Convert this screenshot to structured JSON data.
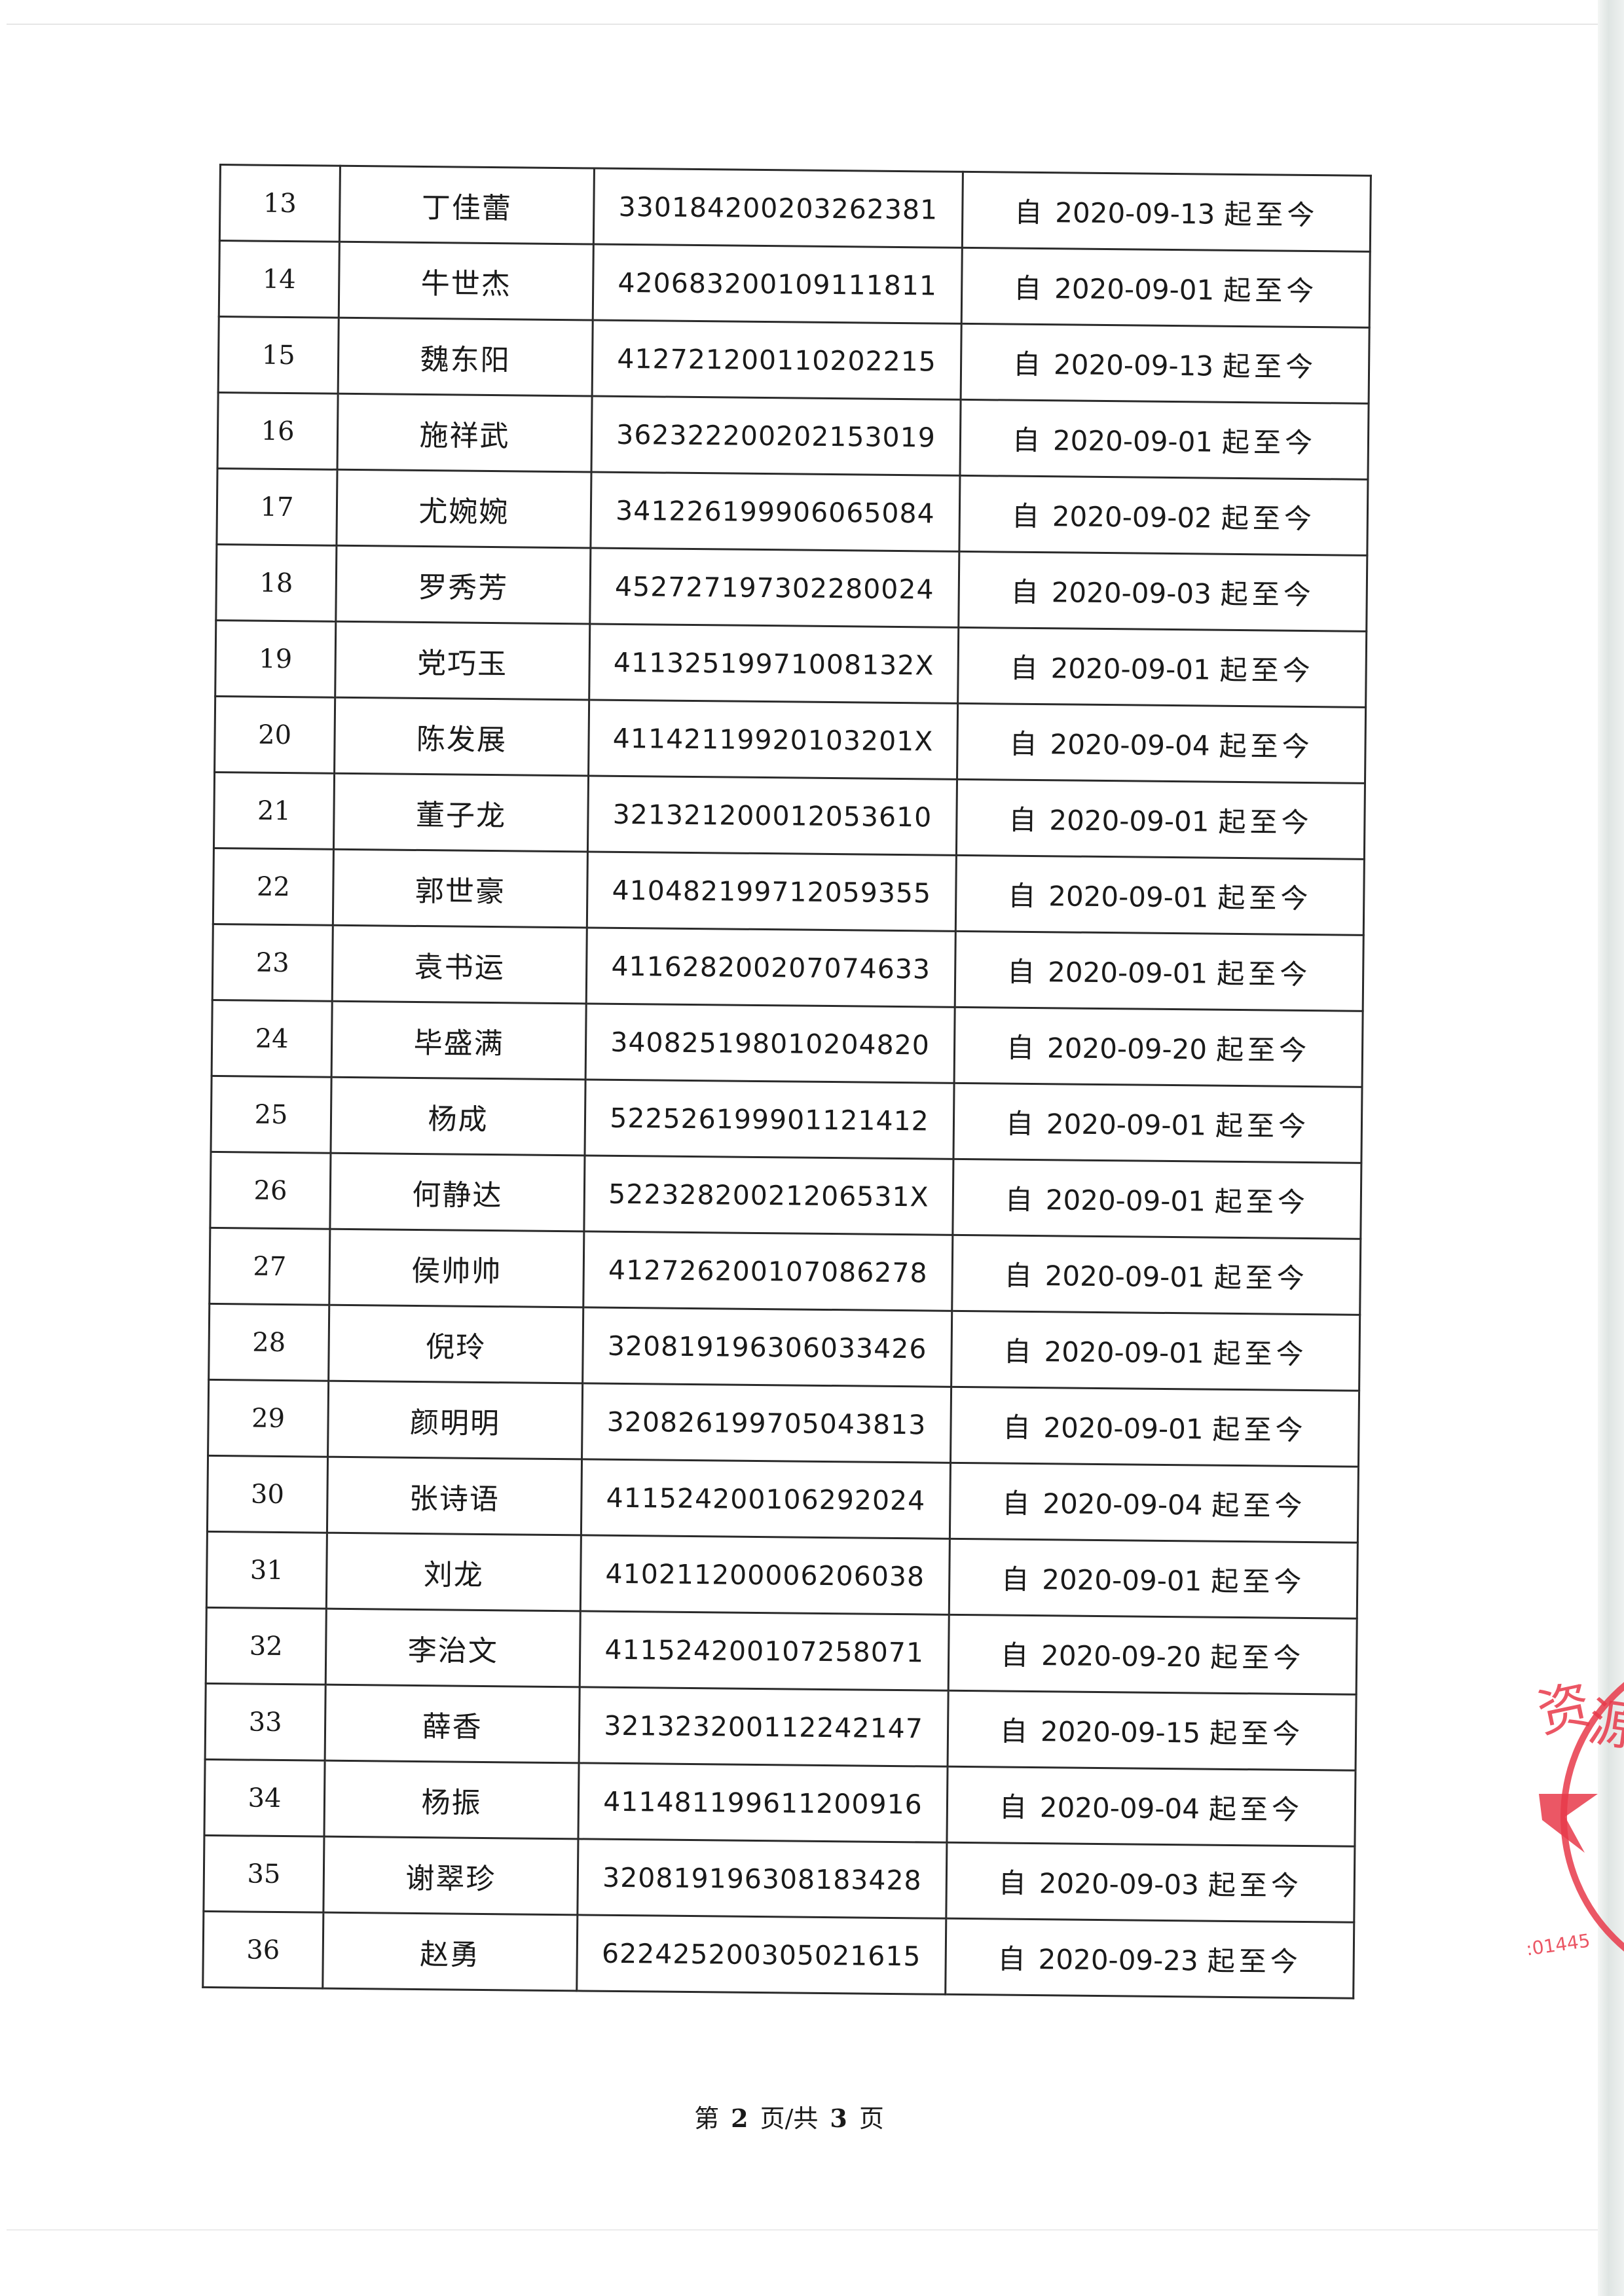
{
  "rows": [
    {
      "no": "13",
      "name": "丁佳蕾",
      "id": "330184200203262381",
      "date": "2020-09-13"
    },
    {
      "no": "14",
      "name": "牛世杰",
      "id": "420683200109111811",
      "date": "2020-09-01"
    },
    {
      "no": "15",
      "name": "魏东阳",
      "id": "412721200110202215",
      "date": "2020-09-13"
    },
    {
      "no": "16",
      "name": "施祥武",
      "id": "362322200202153019",
      "date": "2020-09-01"
    },
    {
      "no": "17",
      "name": "尤婉婉",
      "id": "341226199906065084",
      "date": "2020-09-02"
    },
    {
      "no": "18",
      "name": "罗秀芳",
      "id": "452727197302280024",
      "date": "2020-09-03"
    },
    {
      "no": "19",
      "name": "党巧玉",
      "id": "41132519971008132X",
      "date": "2020-09-01"
    },
    {
      "no": "20",
      "name": "陈发展",
      "id": "41142119920103201X",
      "date": "2020-09-04"
    },
    {
      "no": "21",
      "name": "董子龙",
      "id": "321321200012053610",
      "date": "2020-09-01"
    },
    {
      "no": "22",
      "name": "郭世豪",
      "id": "410482199712059355",
      "date": "2020-09-01"
    },
    {
      "no": "23",
      "name": "袁书运",
      "id": "411628200207074633",
      "date": "2020-09-01"
    },
    {
      "no": "24",
      "name": "毕盛满",
      "id": "340825198010204820",
      "date": "2020-09-20"
    },
    {
      "no": "25",
      "name": "杨成",
      "id": "522526199901121412",
      "date": "2020-09-01"
    },
    {
      "no": "26",
      "name": "何静达",
      "id": "52232820021206531X",
      "date": "2020-09-01"
    },
    {
      "no": "27",
      "name": "侯帅帅",
      "id": "412726200107086278",
      "date": "2020-09-01"
    },
    {
      "no": "28",
      "name": "倪玲",
      "id": "320819196306033426",
      "date": "2020-09-01"
    },
    {
      "no": "29",
      "name": "颜明明",
      "id": "320826199705043813",
      "date": "2020-09-01"
    },
    {
      "no": "30",
      "name": "张诗语",
      "id": "411524200106292024",
      "date": "2020-09-04"
    },
    {
      "no": "31",
      "name": "刘龙",
      "id": "410211200006206038",
      "date": "2020-09-01"
    },
    {
      "no": "32",
      "name": "李治文",
      "id": "411524200107258071",
      "date": "2020-09-20"
    },
    {
      "no": "33",
      "name": "薛香",
      "id": "321323200112242147",
      "date": "2020-09-15"
    },
    {
      "no": "34",
      "name": "杨振",
      "id": "411481199611200916",
      "date": "2020-09-04"
    },
    {
      "no": "35",
      "name": "谢翠珍",
      "id": "320819196308183428",
      "date": "2020-09-03"
    },
    {
      "no": "36",
      "name": "赵勇",
      "id": "622425200305021615",
      "date": "2020-09-23"
    }
  ],
  "date_prefix": "自",
  "date_suffix": "起至今",
  "footer": {
    "pre": "第",
    "page": "2",
    "mid": "页/共",
    "total": "3",
    "post": "页"
  },
  "stamp": {
    "text": "资源",
    "number": "01445",
    "color": "#e8394a"
  }
}
